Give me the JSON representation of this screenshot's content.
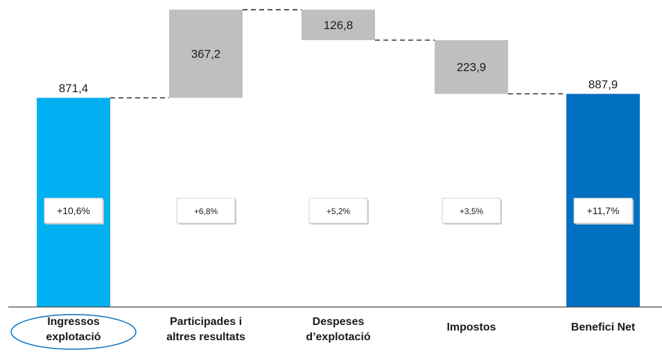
{
  "chart_data": {
    "type": "bar",
    "subtype": "waterfall",
    "categories": [
      [
        "Ingressos",
        "explotació"
      ],
      [
        "Participades i",
        "altres resultats"
      ],
      [
        "Despeses",
        "d’explotació"
      ],
      [
        "Impostos"
      ],
      [
        "Benefici Net"
      ]
    ],
    "values": [
      871.4,
      367.2,
      -126.8,
      -223.9,
      887.9
    ],
    "value_labels": [
      "871,4",
      "367,2",
      "126,8",
      "223,9",
      "887,9"
    ],
    "kinds": [
      "total",
      "increase",
      "decrease",
      "decrease",
      "total"
    ],
    "change_badges": [
      "+10,6%",
      "+6,8%",
      "+5,2%",
      "+3,5%",
      "+11,7%"
    ],
    "colors": [
      "#00b0f0",
      "#bfbfbf",
      "#bfbfbf",
      "#bfbfbf",
      "#0070c0"
    ],
    "highlighted_category": 0,
    "highlight_color": "#0070c0",
    "ylim": [
      0,
      1238.6
    ],
    "connector_lines": "dashed",
    "grid": false,
    "legend": "none"
  }
}
